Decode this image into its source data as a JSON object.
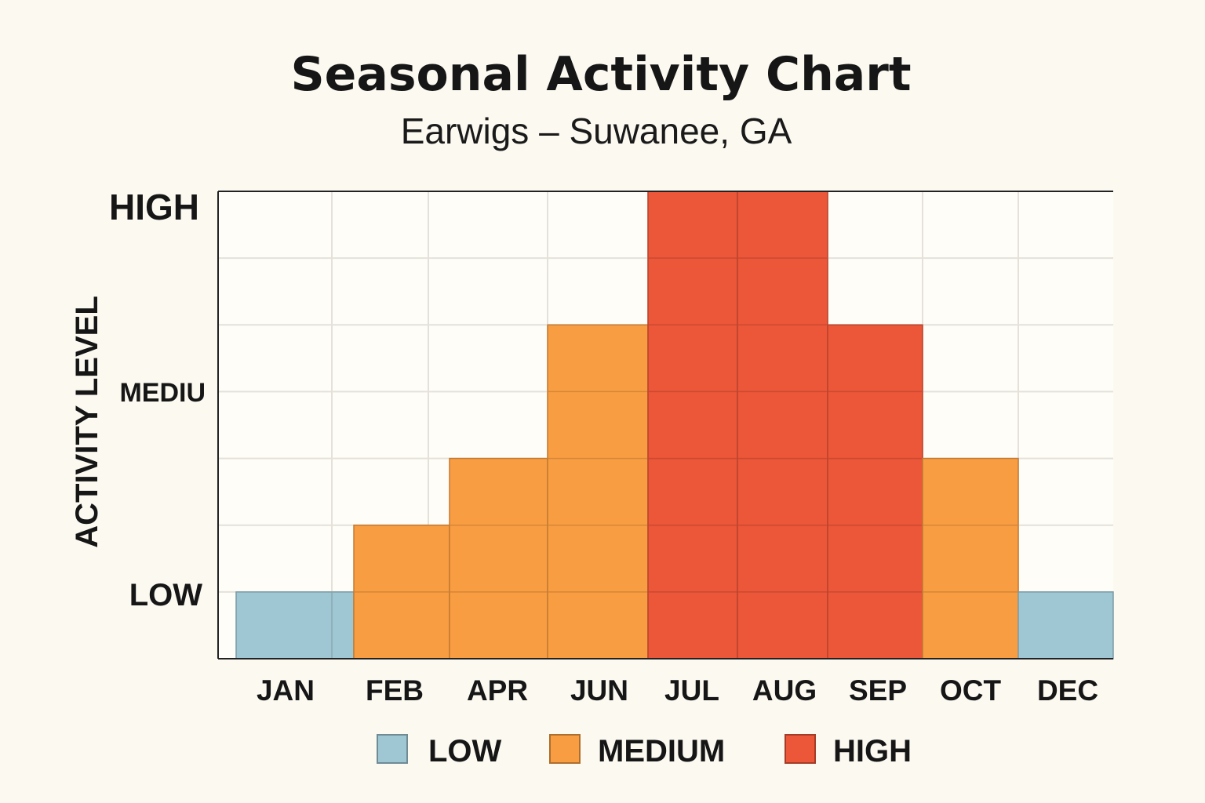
{
  "chart_data": {
    "type": "bar",
    "title": "Seasonal Activity Chart",
    "subtitle": "Earwigs – Suwanee, GA",
    "xlabel": "",
    "ylabel": "ACTIVITY LEVEL",
    "y_tick_labels": [
      "LOW",
      "MEDIU",
      "HIGH"
    ],
    "categories": [
      "JAN",
      "FEB",
      "APR",
      "JUN",
      "JUL",
      "AUG",
      "SEP",
      "OCT",
      "DEC"
    ],
    "values": [
      1,
      2,
      3,
      5,
      7,
      7,
      5,
      3,
      1
    ],
    "levels": [
      "low",
      "medium",
      "medium",
      "medium",
      "high",
      "high",
      "high",
      "medium",
      "low"
    ],
    "ylim": [
      0,
      7
    ],
    "grid": true,
    "legend": {
      "placement": "bottom",
      "entries": [
        {
          "label": "LOW",
          "color": "#9ec6d3"
        },
        {
          "label": "MEDIUM",
          "color": "#f99d42"
        },
        {
          "label": "HIGH",
          "color": "#ec5639"
        }
      ]
    },
    "colors": {
      "low": "#9ec6d3",
      "medium": "#f99d42",
      "high": "#ec5639"
    }
  }
}
